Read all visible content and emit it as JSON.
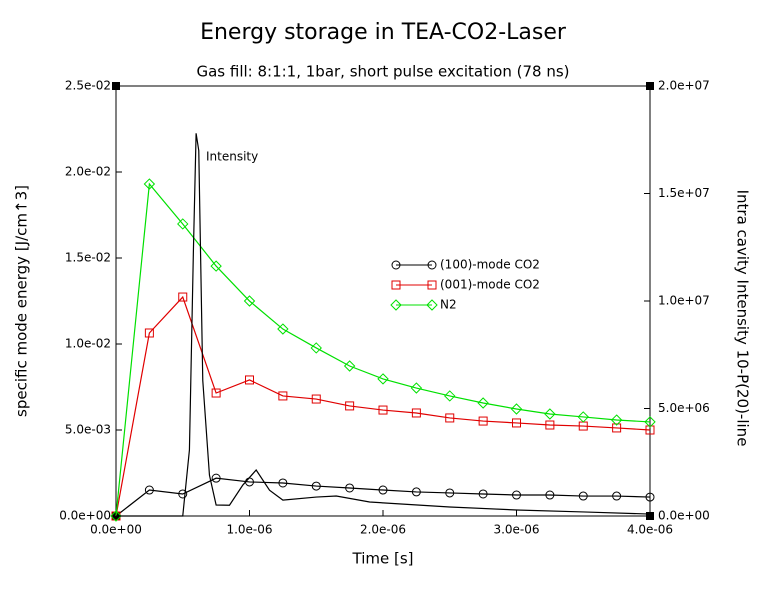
{
  "chart_data": {
    "type": "line",
    "title": "Energy storage in TEA-CO2-Laser",
    "subtitle": "Gas fill: 8:1:1, 1bar, short pulse excitation (78 ns)",
    "x_label": "Time [s]",
    "y_label": "specific mode energy [J/cm↑3]",
    "y2_label": "Intra cavity Intensity 10-P(20)-line",
    "annotation": "Intensity",
    "xlim": [
      0,
      4e-06
    ],
    "xticks": [
      {
        "value": 0,
        "label": "0.0e+00"
      },
      {
        "value": 1e-06,
        "label": "1.0e-06"
      },
      {
        "value": 2e-06,
        "label": "2.0e-06"
      },
      {
        "value": 3e-06,
        "label": "3.0e-06"
      },
      {
        "value": 4e-06,
        "label": "4.0e-06"
      }
    ],
    "ylim": [
      0,
      0.025
    ],
    "yticks": [
      {
        "value": 0,
        "label": "0.0e+00"
      },
      {
        "value": 0.005,
        "label": "5.0e-03"
      },
      {
        "value": 0.01,
        "label": "1.0e-02"
      },
      {
        "value": 0.015,
        "label": "1.5e-02"
      },
      {
        "value": 0.02,
        "label": "2.0e-02"
      },
      {
        "value": 0.025,
        "label": "2.5e-02"
      }
    ],
    "y2lim": [
      0,
      20000000
    ],
    "y2ticks": [
      {
        "value": 0,
        "label": "0.0e+00"
      },
      {
        "value": 5000000,
        "label": "5.0e+06"
      },
      {
        "value": 10000000,
        "label": "1.0e+07"
      },
      {
        "value": 15000000,
        "label": "1.5e+07"
      },
      {
        "value": 20000000,
        "label": "2.0e+07"
      }
    ],
    "x": [
      0,
      2.5e-07,
      5e-07,
      7.5e-07,
      1e-06,
      1.25e-06,
      1.5e-06,
      1.75e-06,
      2e-06,
      2.25e-06,
      2.5e-06,
      2.75e-06,
      3e-06,
      3.25e-06,
      3.5e-06,
      3.75e-06,
      4e-06
    ],
    "series": [
      {
        "name": "(100)-mode CO2",
        "color": "#000000",
        "marker": "circle",
        "values": [
          0,
          0.00151,
          0.00128,
          0.0022,
          0.00198,
          0.00192,
          0.00174,
          0.00163,
          0.00151,
          0.0014,
          0.00134,
          0.00128,
          0.00122,
          0.00122,
          0.00116,
          0.00116,
          0.0011
        ]
      },
      {
        "name": "(001)-mode CO2",
        "color": "#e00000",
        "marker": "square",
        "values": [
          0,
          0.01064,
          0.01273,
          0.00715,
          0.00791,
          0.00698,
          0.0068,
          0.0064,
          0.00616,
          0.00599,
          0.0057,
          0.00552,
          0.00541,
          0.00529,
          0.00523,
          0.00512,
          0.005
        ]
      },
      {
        "name": "N2",
        "color": "#00e000",
        "marker": "diamond",
        "values": [
          0,
          0.0193,
          0.01698,
          0.01453,
          0.0125,
          0.01087,
          0.00977,
          0.00872,
          0.00797,
          0.00744,
          0.00698,
          0.00657,
          0.00622,
          0.00593,
          0.00576,
          0.00558,
          0.00547
        ]
      },
      {
        "color": "#000000",
        "axis": "y2",
        "x": [
          0,
          5e-07,
          5.5e-07,
          5.8e-07,
          6e-07,
          6.2e-07,
          6.5e-07,
          7e-07,
          7.5e-07,
          8.5e-07,
          9.5e-07,
          1.05e-06,
          1.15e-06,
          1.25e-06,
          1.5e-06,
          1.65e-06,
          1.9e-06,
          2.5e-06,
          3e-06,
          3.5e-06,
          4e-06
        ],
        "values": [
          0,
          0,
          3070000,
          12400000,
          17800000,
          17000000,
          6300000,
          1900000,
          510000,
          500000,
          1440000,
          2140000,
          1200000,
          740000,
          880000,
          930000,
          650000,
          420000,
          280000,
          190000,
          90000
        ]
      }
    ]
  }
}
